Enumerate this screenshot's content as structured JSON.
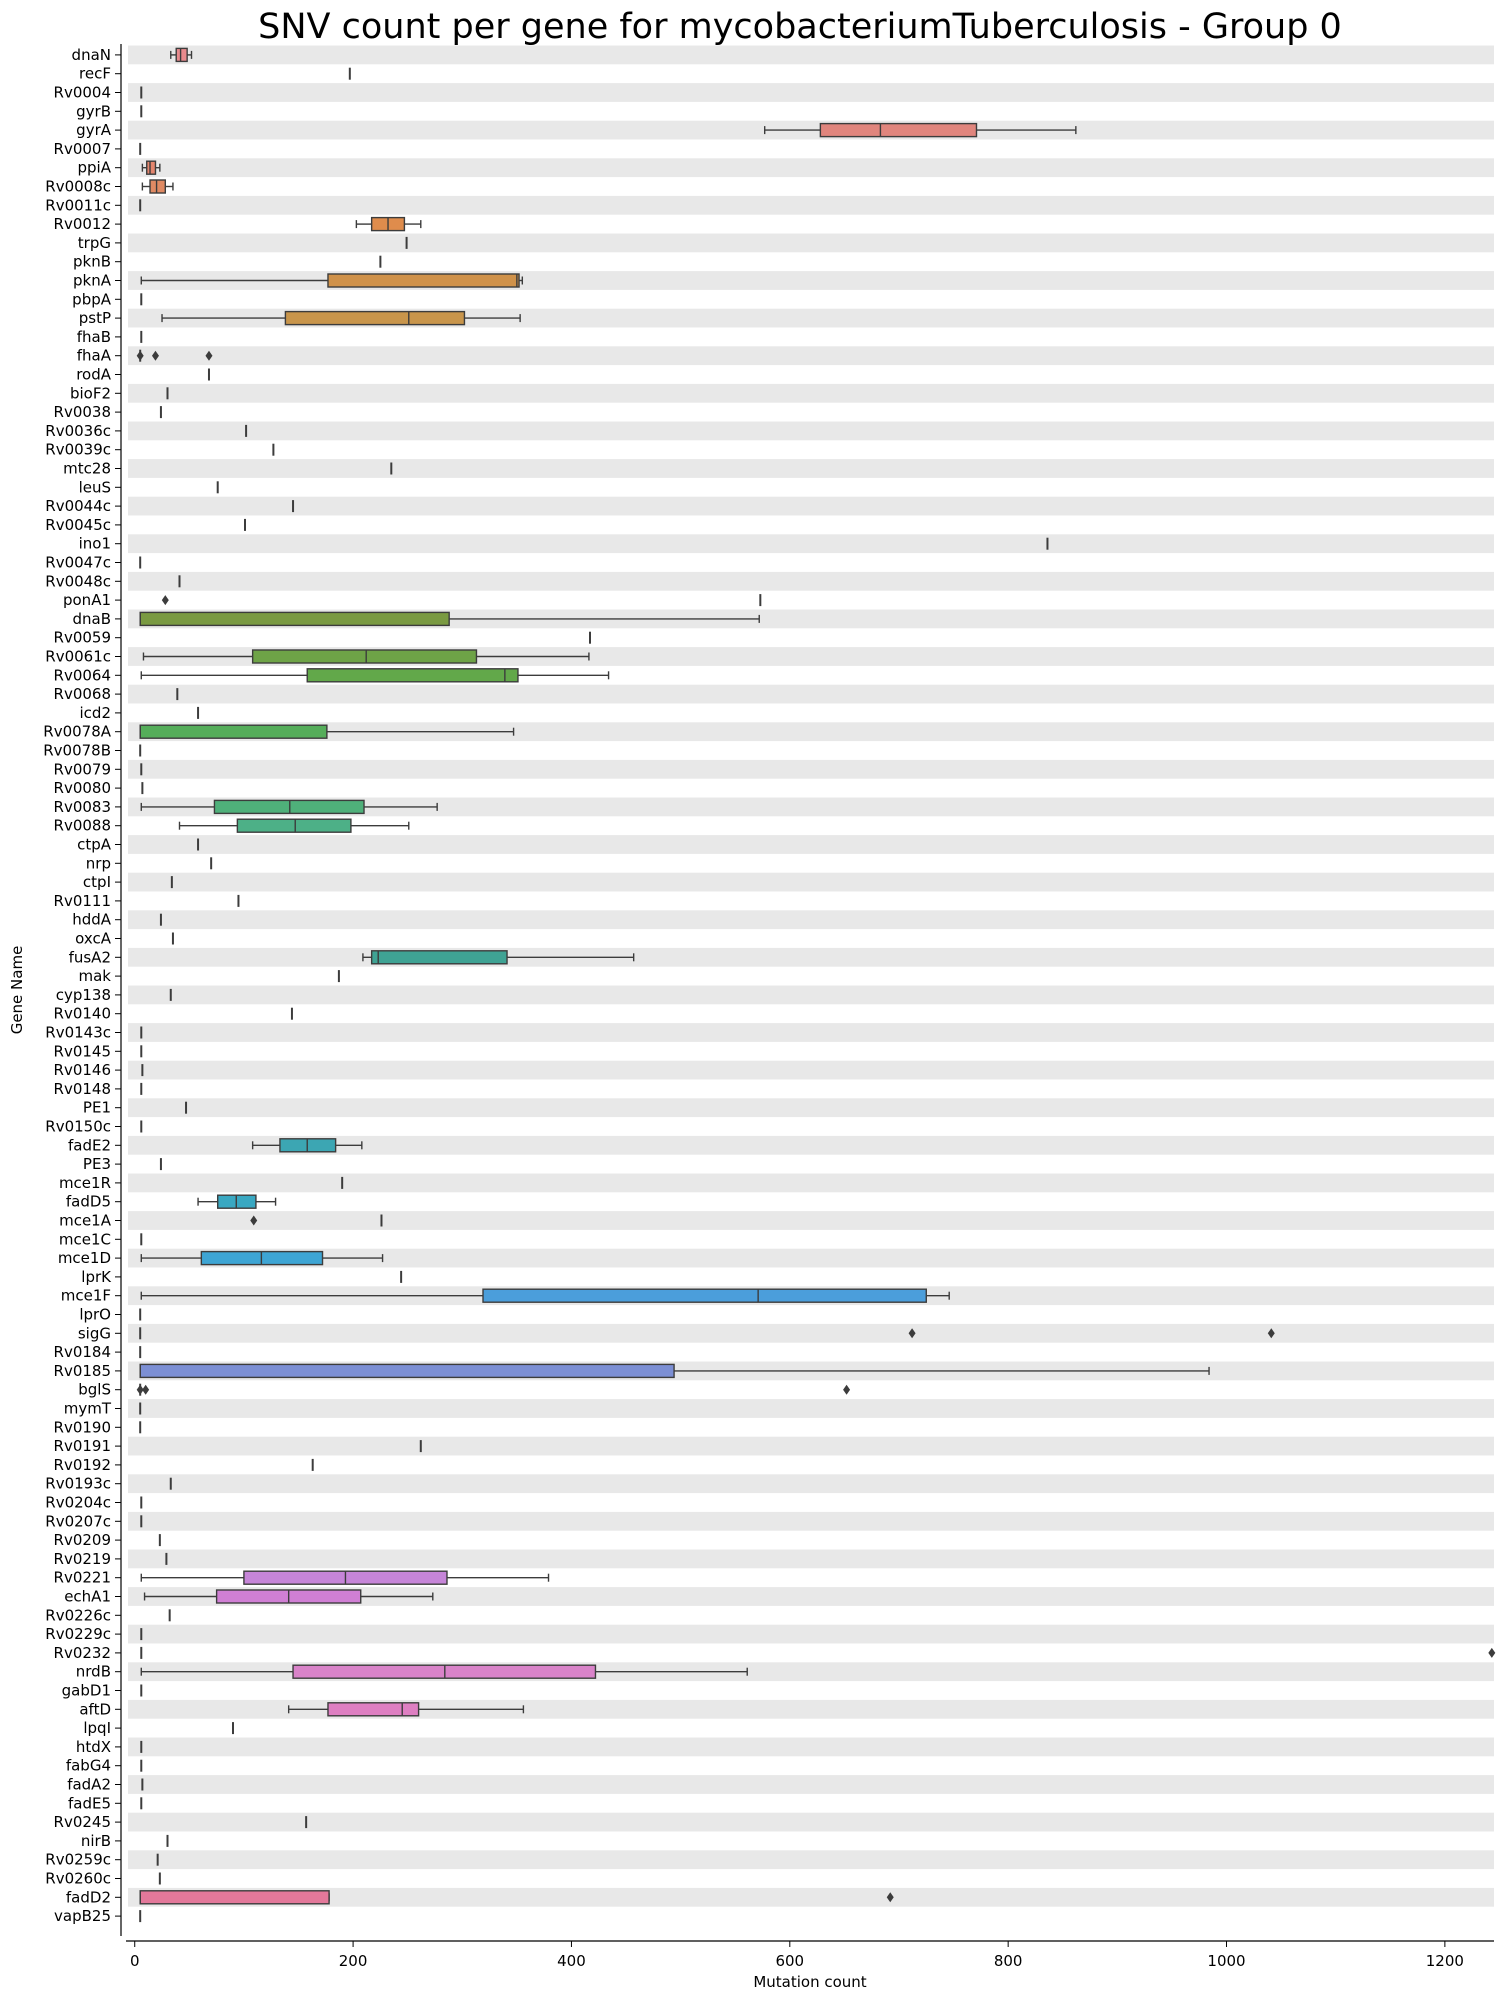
{
  "chart_data": {
    "type": "box",
    "orientation": "horizontal",
    "title": "SNV count per gene for mycobacteriumTuberculosis - Group 0",
    "xlabel": "Mutation count",
    "ylabel": "Gene Name",
    "xlim": [
      -8,
      1245
    ],
    "xticks": [
      0,
      200,
      400,
      600,
      800,
      1000,
      1200
    ],
    "grid": false,
    "row_banding": "alternating light grey",
    "categories": [
      "dnaN",
      "recF",
      "Rv0004",
      "gyrB",
      "gyrA",
      "Rv0007",
      "ppiA",
      "Rv0008c",
      "Rv0011c",
      "Rv0012",
      "trpG",
      "pknB",
      "pknA",
      "pbpA",
      "pstP",
      "fhaB",
      "fhaA",
      "rodA",
      "bioF2",
      "Rv0038",
      "Rv0036c",
      "Rv0039c",
      "mtc28",
      "leuS",
      "Rv0044c",
      "Rv0045c",
      "ino1",
      "Rv0047c",
      "Rv0048c",
      "ponA1",
      "dnaB",
      "Rv0059",
      "Rv0061c",
      "Rv0064",
      "Rv0068",
      "icd2",
      "Rv0078A",
      "Rv0078B",
      "Rv0079",
      "Rv0080",
      "Rv0083",
      "Rv0088",
      "ctpA",
      "nrp",
      "ctpI",
      "Rv0111",
      "hddA",
      "oxcA",
      "fusA2",
      "mak",
      "cyp138",
      "Rv0140",
      "Rv0143c",
      "Rv0145",
      "Rv0146",
      "Rv0148",
      "PE1",
      "Rv0150c",
      "fadE2",
      "PE3",
      "mce1R",
      "fadD5",
      "mce1A",
      "mce1C",
      "mce1D",
      "lprK",
      "mce1F",
      "lprO",
      "sigG",
      "Rv0184",
      "Rv0185",
      "bglS",
      "mymT",
      "Rv0190",
      "Rv0191",
      "Rv0192",
      "Rv0193c",
      "Rv0204c",
      "Rv0207c",
      "Rv0209",
      "Rv0219",
      "Rv0221",
      "echA1",
      "Rv0226c",
      "Rv0229c",
      "Rv0232",
      "nrdB",
      "gabD1",
      "aftD",
      "lpqI",
      "htdX",
      "fabG4",
      "fadA2",
      "fadE5",
      "Rv0245",
      "nirB",
      "Rv0259c",
      "Rv0260c",
      "fadD2",
      "vapB25"
    ],
    "boxes": [
      {
        "q1": 38,
        "median": 42,
        "q3": 48,
        "whislo": 33,
        "whishi": 52,
        "color": "#e88a8d"
      },
      {
        "single": 197
      },
      {
        "single": 6
      },
      {
        "single": 6
      },
      {
        "q1": 628,
        "median": 683,
        "q3": 771,
        "whislo": 577,
        "whishi": 862,
        "color": "#e0857d"
      },
      {
        "single": 5
      },
      {
        "q1": 11,
        "median": 14,
        "q3": 19,
        "whislo": 7,
        "whishi": 23,
        "color": "#e4866e"
      },
      {
        "q1": 14,
        "median": 20,
        "q3": 28,
        "whislo": 7,
        "whishi": 35,
        "color": "#e08a63"
      },
      {
        "single": 5
      },
      {
        "q1": 217,
        "median": 232,
        "q3": 247,
        "whislo": 203,
        "whishi": 262,
        "color": "#df8c4c"
      },
      {
        "single": 249
      },
      {
        "single": 225
      },
      {
        "q1": 177,
        "median": 350,
        "q3": 352,
        "whislo": 6,
        "whishi": 355,
        "color": "#d0924a"
      },
      {
        "single": 6
      },
      {
        "q1": 138,
        "median": 251,
        "q3": 302,
        "whislo": 25,
        "whishi": 353,
        "color": "#c8954b"
      },
      {
        "single": 6
      },
      {
        "single": 5,
        "outliers": [
          5,
          19,
          68
        ]
      },
      {
        "single": 68
      },
      {
        "single": 30
      },
      {
        "single": 24
      },
      {
        "single": 102
      },
      {
        "single": 127
      },
      {
        "single": 235
      },
      {
        "single": 76
      },
      {
        "single": 145
      },
      {
        "single": 101
      },
      {
        "single": 836
      },
      {
        "single": 5
      },
      {
        "single": 41
      },
      {
        "single": 573,
        "outliers": [
          28
        ]
      },
      {
        "q1": 5,
        "median": 5,
        "q3": 288,
        "whislo": 5,
        "whishi": 572,
        "color": "#7a9a42"
      },
      {
        "single": 417
      },
      {
        "q1": 108,
        "median": 212,
        "q3": 313,
        "whislo": 8,
        "whishi": 416,
        "color": "#6ea347"
      },
      {
        "q1": 158,
        "median": 339,
        "q3": 351,
        "whislo": 6,
        "whishi": 434,
        "color": "#62a84a"
      },
      {
        "single": 39
      },
      {
        "single": 58
      },
      {
        "q1": 5,
        "median": 5,
        "q3": 176,
        "whislo": 5,
        "whishi": 347,
        "color": "#55ad5a"
      },
      {
        "single": 5
      },
      {
        "single": 6
      },
      {
        "single": 7
      },
      {
        "q1": 73,
        "median": 142,
        "q3": 210,
        "whislo": 6,
        "whishi": 277,
        "color": "#4fb07a"
      },
      {
        "q1": 94,
        "median": 147,
        "q3": 198,
        "whislo": 41,
        "whishi": 251,
        "color": "#4db087"
      },
      {
        "single": 58
      },
      {
        "single": 70
      },
      {
        "single": 34
      },
      {
        "single": 95
      },
      {
        "single": 24
      },
      {
        "single": 35
      },
      {
        "q1": 217,
        "median": 223,
        "q3": 341,
        "whislo": 209,
        "whishi": 457,
        "color": "#3fa394"
      },
      {
        "single": 187
      },
      {
        "single": 33
      },
      {
        "single": 144
      },
      {
        "single": 6
      },
      {
        "single": 6
      },
      {
        "single": 7
      },
      {
        "single": 6
      },
      {
        "single": 47
      },
      {
        "single": 6
      },
      {
        "q1": 133,
        "median": 158,
        "q3": 184,
        "whislo": 108,
        "whishi": 208,
        "color": "#3ca6b3"
      },
      {
        "single": 24
      },
      {
        "single": 190
      },
      {
        "q1": 76,
        "median": 93,
        "q3": 111,
        "whislo": 58,
        "whishi": 129,
        "color": "#39a8c2"
      },
      {
        "single": 226,
        "outliers": [
          109
        ]
      },
      {
        "single": 6
      },
      {
        "q1": 61,
        "median": 116,
        "q3": 172,
        "whislo": 6,
        "whishi": 227,
        "color": "#3ea5d4"
      },
      {
        "single": 244
      },
      {
        "q1": 319,
        "median": 571,
        "q3": 725,
        "whislo": 6,
        "whishi": 746,
        "color": "#4b9edb"
      },
      {
        "single": 5
      },
      {
        "single": 5,
        "outliers": [
          712,
          1041
        ]
      },
      {
        "single": 5
      },
      {
        "q1": 5,
        "median": 5,
        "q3": 494,
        "whislo": 5,
        "whishi": 984,
        "color": "#7c8fd4"
      },
      {
        "single": 5,
        "outliers": [
          5,
          10,
          652
        ]
      },
      {
        "single": 5
      },
      {
        "single": 5
      },
      {
        "single": 262
      },
      {
        "single": 163
      },
      {
        "single": 33
      },
      {
        "single": 6
      },
      {
        "single": 6
      },
      {
        "single": 23
      },
      {
        "single": 29
      },
      {
        "q1": 100,
        "median": 193,
        "q3": 286,
        "whislo": 6,
        "whishi": 379,
        "color": "#c685d8"
      },
      {
        "q1": 75,
        "median": 141,
        "q3": 207,
        "whislo": 9,
        "whishi": 273,
        "color": "#d07fd4"
      },
      {
        "single": 32
      },
      {
        "single": 6
      },
      {
        "single": 6,
        "outliers": [
          1243
        ]
      },
      {
        "q1": 145,
        "median": 284,
        "q3": 422,
        "whislo": 6,
        "whishi": 561,
        "color": "#d983c9"
      },
      {
        "single": 6
      },
      {
        "q1": 177,
        "median": 245,
        "q3": 260,
        "whislo": 141,
        "whishi": 356,
        "color": "#de7fc2"
      },
      {
        "single": 90
      },
      {
        "single": 6
      },
      {
        "single": 6
      },
      {
        "single": 7
      },
      {
        "single": 6
      },
      {
        "single": 157
      },
      {
        "single": 30
      },
      {
        "single": 21
      },
      {
        "single": 23
      },
      {
        "q1": 5,
        "median": 5,
        "q3": 178,
        "whislo": 5,
        "whishi": 178,
        "color": "#e3789a",
        "outliers": [
          692
        ]
      },
      {
        "single": 5
      }
    ]
  }
}
